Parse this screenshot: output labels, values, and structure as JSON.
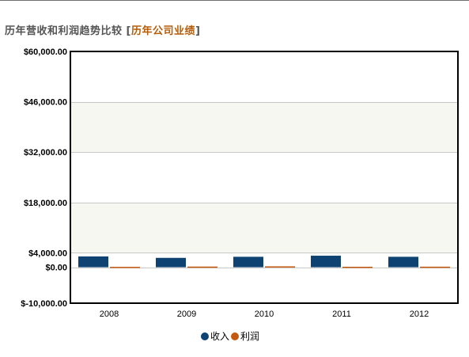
{
  "header": {
    "title": "历年营收和利润趋势比较",
    "bracket_open": "[",
    "link_label": "历年公司业绩",
    "bracket_close": "]"
  },
  "colors": {
    "revenue": "#0e4272",
    "profit": "#c45a10",
    "band": "#f6f7f0",
    "grid": "#c8c8c8",
    "frame": "#000000"
  },
  "chart_data": {
    "type": "bar",
    "title": "",
    "xlabel": "",
    "ylabel": "",
    "categories": [
      "2008",
      "2009",
      "2010",
      "2011",
      "2012"
    ],
    "series": [
      {
        "name": "收入",
        "values": [
          3000,
          2600,
          2900,
          3200,
          2900
        ]
      },
      {
        "name": "利润",
        "values": [
          100,
          180,
          250,
          120,
          150
        ]
      }
    ],
    "ylim": [
      -10000,
      60000
    ],
    "yticks": [
      -10000,
      0,
      4000,
      18000,
      32000,
      46000,
      60000
    ],
    "ytick_labels": [
      "$-10,000.00",
      "$0.00",
      "$4,000.00",
      "$18,000.00",
      "$32,000.00",
      "$46,000.00",
      "$60,000.00"
    ],
    "grid": true,
    "legend_position": "bottom-center"
  }
}
